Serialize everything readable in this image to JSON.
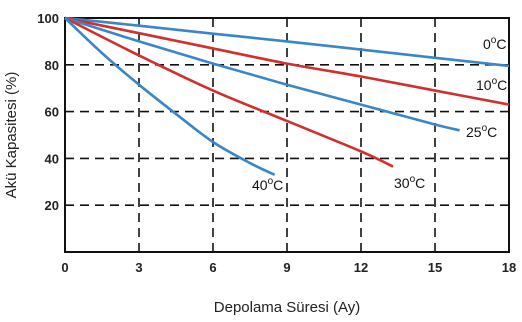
{
  "chart_data": {
    "type": "line",
    "xlabel": "Depolama Süresi (Ay)",
    "ylabel": "Akü Kapasitesi (%)",
    "xlim": [
      0,
      18
    ],
    "ylim": [
      0,
      100
    ],
    "xticks": [
      "0",
      "3",
      "6",
      "9",
      "12",
      "15",
      "18"
    ],
    "yticks": [
      "20",
      "40",
      "60",
      "80",
      "100"
    ],
    "grid": true,
    "series": [
      {
        "name": "0°C",
        "label_deg": "o",
        "label_unit": "C",
        "label_num": "0",
        "color": "#3a86c8",
        "x": [
          0,
          3,
          6,
          9,
          12,
          15,
          18
        ],
        "y": [
          100,
          96.7,
          93.3,
          90,
          86.5,
          83,
          79.5
        ]
      },
      {
        "name": "10°C",
        "label_deg": "o",
        "label_unit": "C",
        "label_num": "10",
        "color": "#d03030",
        "x": [
          0,
          3,
          6,
          9,
          12,
          15,
          18
        ],
        "y": [
          100,
          93.5,
          87,
          80.5,
          75,
          69,
          63
        ]
      },
      {
        "name": "25°C",
        "label_deg": "o",
        "label_unit": "C",
        "label_num": "25",
        "color": "#3a86c8",
        "x": [
          0,
          3,
          6,
          9,
          12,
          15,
          16
        ],
        "y": [
          100,
          90,
          80.5,
          71.5,
          63,
          54.5,
          52
        ]
      },
      {
        "name": "30°C",
        "label_deg": "o",
        "label_unit": "C",
        "label_num": "30",
        "color": "#d03030",
        "x": [
          0,
          3,
          6,
          9,
          12,
          13.3
        ],
        "y": [
          100,
          84,
          69,
          56,
          43,
          36.5
        ]
      },
      {
        "name": "40°C",
        "label_deg": "o",
        "label_unit": "C",
        "label_num": "40",
        "color": "#3a86c8",
        "x": [
          0,
          1.5,
          3,
          4.5,
          6,
          7.5,
          8.5
        ],
        "y": [
          100,
          85,
          71.5,
          59,
          47,
          38,
          33
        ]
      }
    ]
  }
}
